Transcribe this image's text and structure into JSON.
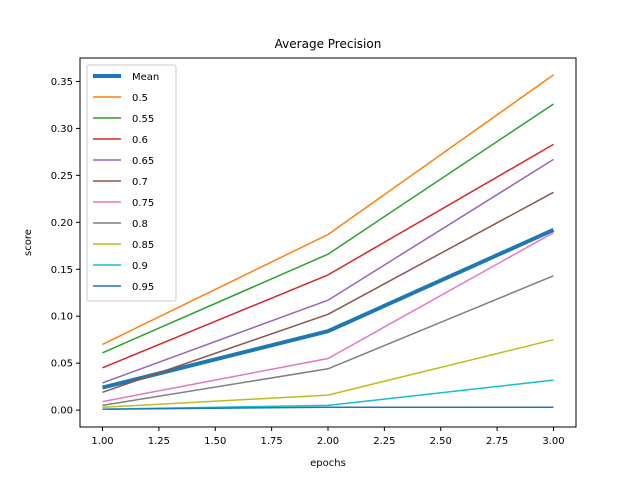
{
  "chart_data": {
    "type": "line",
    "title": "Average Precision",
    "xlabel": "epochs",
    "ylabel": "score",
    "xlim": [
      0.9,
      3.1
    ],
    "ylim": [
      -0.018,
      0.375
    ],
    "x": [
      1.0,
      2.0,
      3.0
    ],
    "xticks": [
      "1.00",
      "1.25",
      "1.50",
      "1.75",
      "2.00",
      "2.25",
      "2.50",
      "2.75",
      "3.00"
    ],
    "xtick_values": [
      1.0,
      1.25,
      1.5,
      1.75,
      2.0,
      2.25,
      2.5,
      2.75,
      3.0
    ],
    "yticks": [
      "0.00",
      "0.05",
      "0.10",
      "0.15",
      "0.20",
      "0.25",
      "0.30",
      "0.35"
    ],
    "ytick_values": [
      0.0,
      0.05,
      0.1,
      0.15,
      0.2,
      0.25,
      0.3,
      0.35
    ],
    "grid": false,
    "legend_position": "top-left",
    "series": [
      {
        "name": "Mean",
        "color": "#1f77b4",
        "values": [
          0.024,
          0.084,
          0.192
        ],
        "bold": true
      },
      {
        "name": "0.5",
        "color": "#ff7f0e",
        "values": [
          0.07,
          0.187,
          0.357
        ]
      },
      {
        "name": "0.55",
        "color": "#2ca02c",
        "values": [
          0.061,
          0.166,
          0.326
        ]
      },
      {
        "name": "0.6",
        "color": "#d62728",
        "values": [
          0.045,
          0.144,
          0.283
        ]
      },
      {
        "name": "0.65",
        "color": "#9467bd",
        "values": [
          0.029,
          0.117,
          0.267
        ]
      },
      {
        "name": "0.7",
        "color": "#8c564b",
        "values": [
          0.019,
          0.102,
          0.232
        ]
      },
      {
        "name": "0.75",
        "color": "#e377c2",
        "values": [
          0.009,
          0.055,
          0.189
        ]
      },
      {
        "name": "0.8",
        "color": "#7f7f7f",
        "values": [
          0.005,
          0.044,
          0.143
        ]
      },
      {
        "name": "0.85",
        "color": "#bcbd22",
        "values": [
          0.003,
          0.016,
          0.075
        ]
      },
      {
        "name": "0.9",
        "color": "#17becf",
        "values": [
          0.001,
          0.005,
          0.032
        ]
      },
      {
        "name": "0.95",
        "color": "#1f77b4",
        "values": [
          0.001,
          0.003,
          0.003
        ]
      }
    ]
  }
}
